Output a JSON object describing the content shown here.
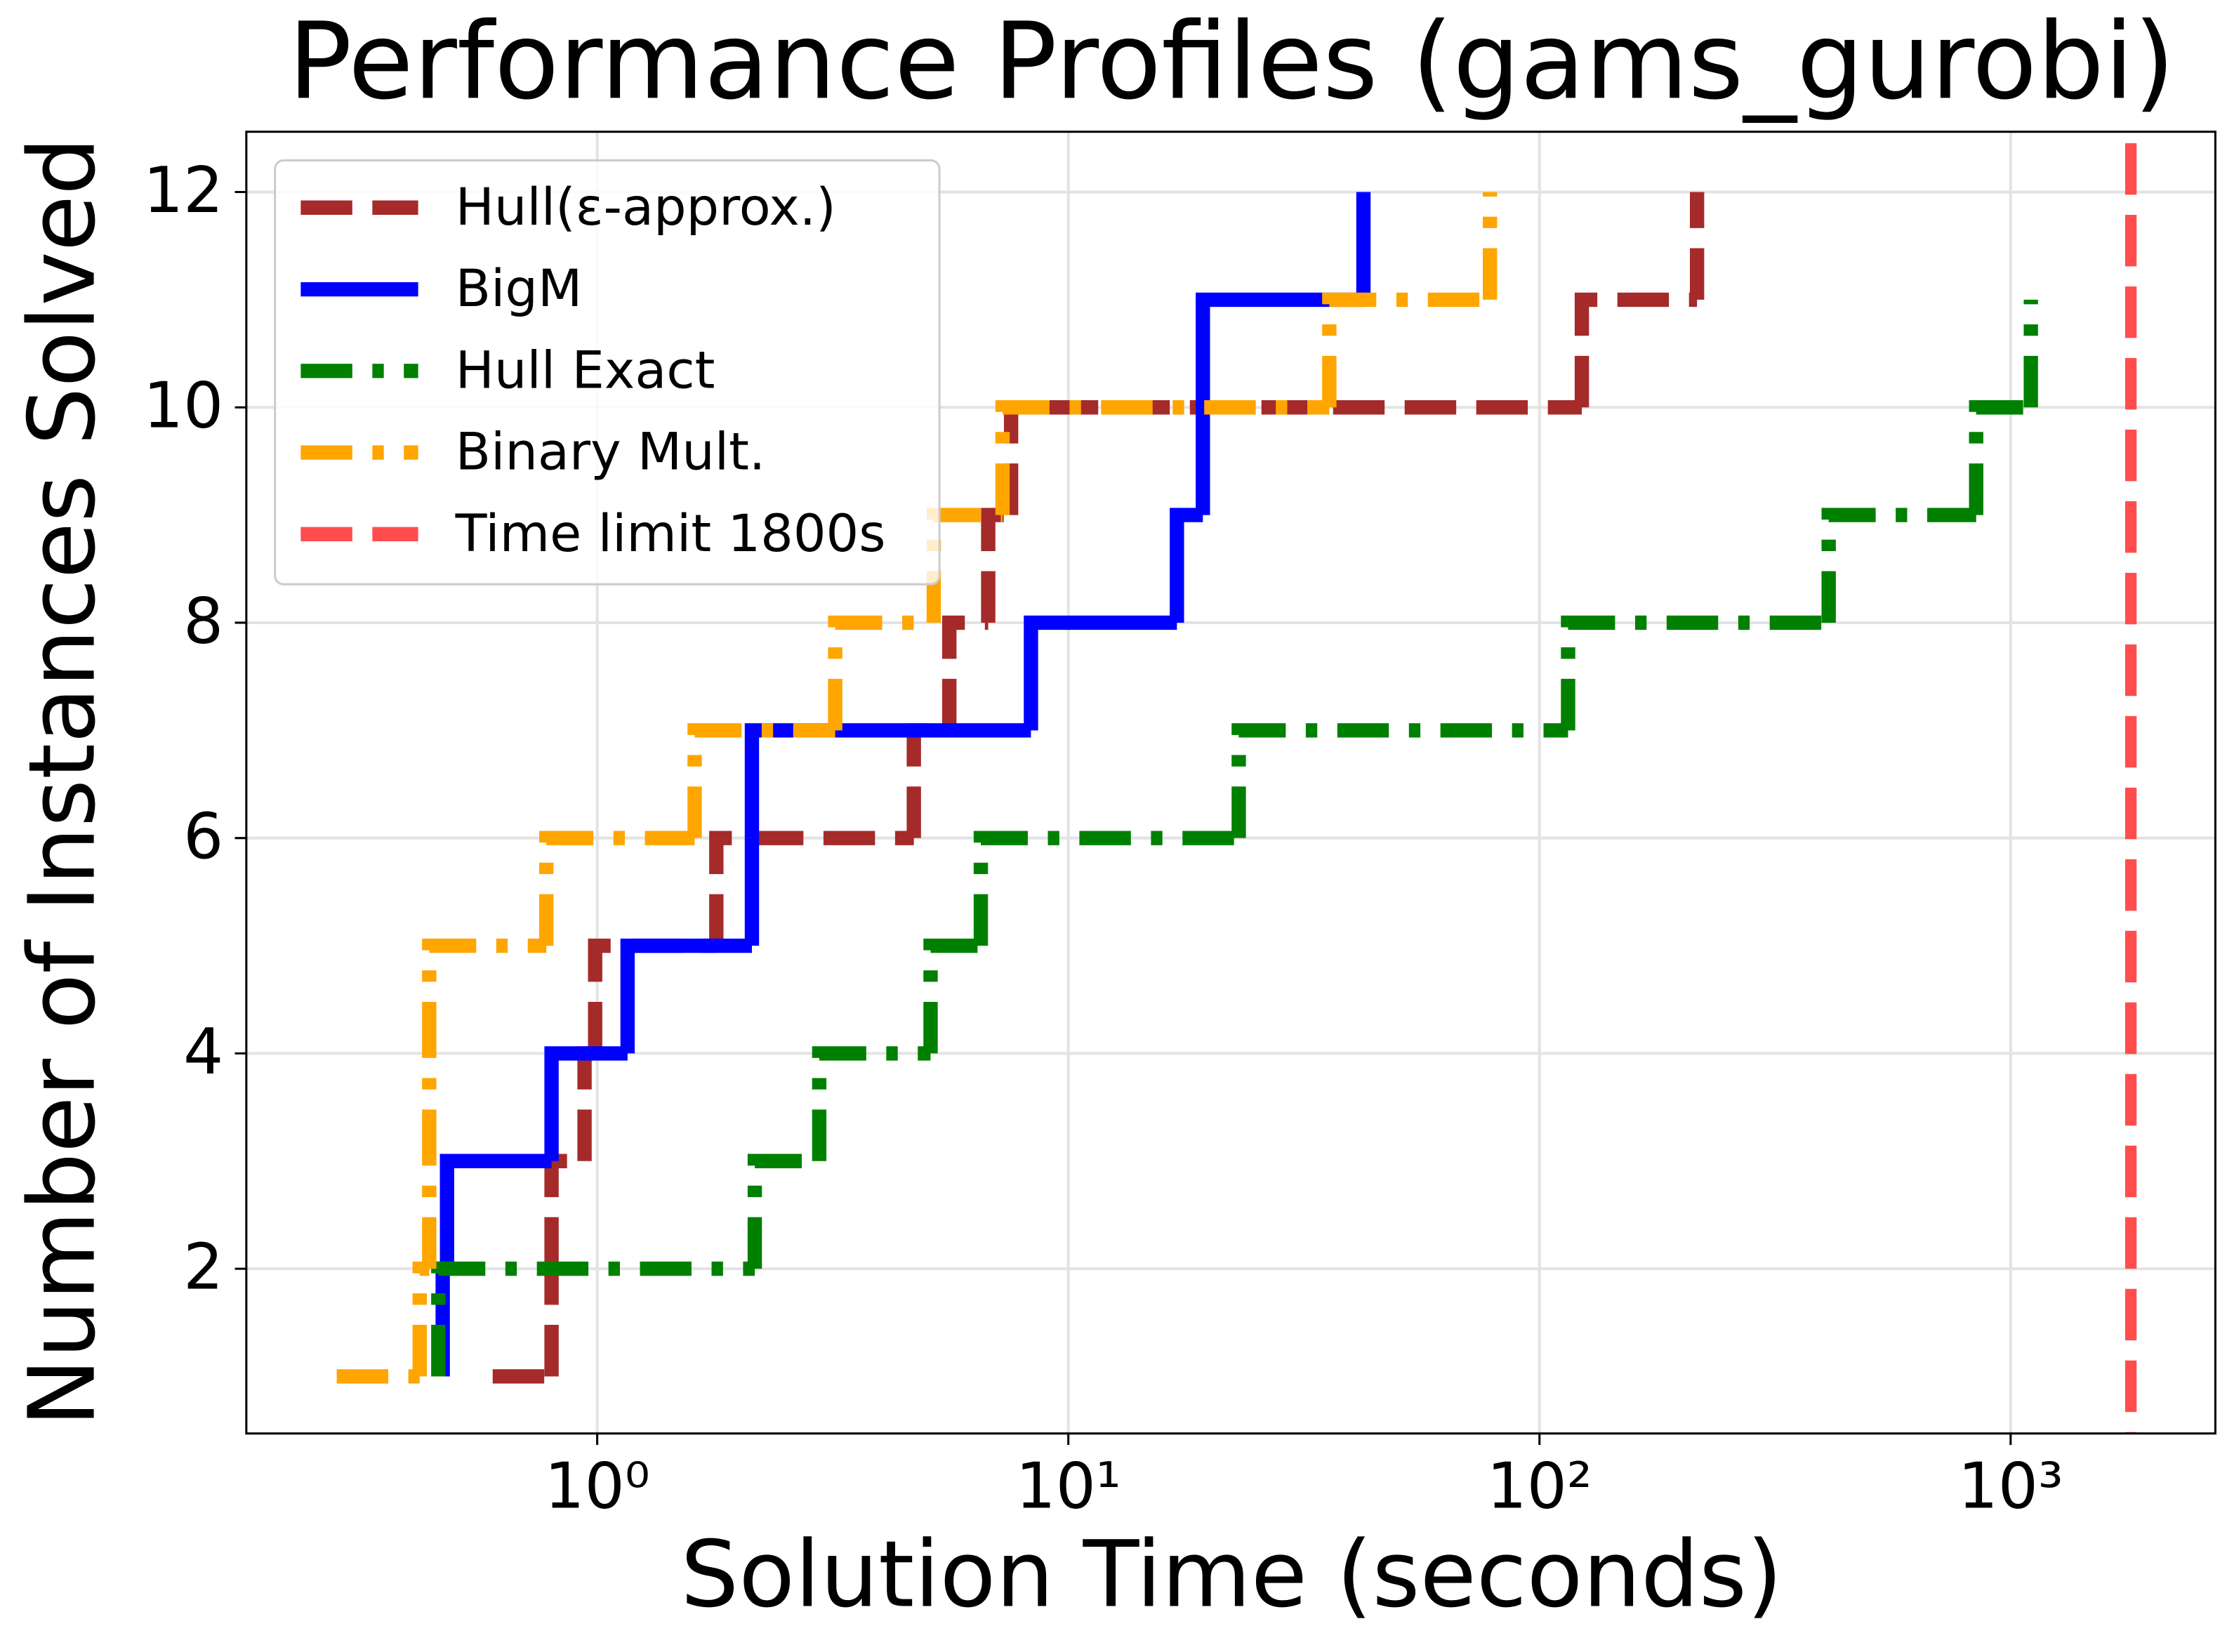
{
  "chart_data": {
    "type": "step",
    "title": "Performance Profiles (gams_gurobi)",
    "xlabel": "Solution Time (seconds)",
    "ylabel": "Number of Instances Solved",
    "xscale": "log",
    "xlim": [
      0.18,
      2720
    ],
    "xticks": [
      {
        "value": 1,
        "label": "10⁰"
      },
      {
        "value": 10,
        "label": "10¹"
      },
      {
        "value": 100,
        "label": "10²"
      },
      {
        "value": 1000,
        "label": "10³"
      }
    ],
    "ylim": [
      0.47,
      12.56
    ],
    "yticks": [
      2,
      4,
      6,
      8,
      10,
      12
    ],
    "grid": true,
    "legend": "upper left",
    "series": [
      {
        "name": "Hull(ε-approx.)",
        "color": "#a52a2a",
        "linestyle": "dashed",
        "x": [
          0.6,
          0.8,
          0.8,
          0.94,
          0.99,
          1.79,
          4.7,
          5.59,
          6.76,
          7.56,
          123,
          216
        ],
        "values": [
          1,
          2,
          3,
          4,
          5,
          6,
          7,
          8,
          9,
          10,
          11,
          12
        ]
      },
      {
        "name": "BigM",
        "color": "#0000ff",
        "linestyle": "solid",
        "x": [
          0.47,
          0.47,
          0.48,
          0.8,
          1.16,
          2.13,
          2.13,
          8.33,
          17,
          19.3,
          19.3,
          42.3
        ],
        "values": [
          1,
          2,
          3,
          4,
          5,
          6,
          7,
          8,
          9,
          10,
          11,
          12
        ]
      },
      {
        "name": "Hull Exact",
        "color": "#008000",
        "linestyle": "dashdot",
        "x": [
          0.46,
          0.46,
          2.16,
          2.96,
          5.1,
          6.52,
          23,
          115,
          411,
          845,
          1104
        ],
        "values": [
          1,
          2,
          3,
          4,
          5,
          6,
          7,
          8,
          9,
          10,
          11
        ]
      },
      {
        "name": "Binary Mult.",
        "color": "#ffa500",
        "linestyle": "dashdot",
        "x": [
          0.28,
          0.42,
          0.44,
          0.44,
          0.44,
          0.78,
          1.61,
          3.2,
          5.18,
          7.25,
          35.8,
          78.5
        ],
        "values": [
          1,
          2,
          3,
          4,
          5,
          6,
          7,
          8,
          9,
          10,
          11,
          12
        ]
      },
      {
        "name": "Time limit 1800s",
        "color": "#ff4d4d",
        "linestyle": "dashed",
        "kind": "vline",
        "x": [
          1800
        ]
      }
    ]
  }
}
